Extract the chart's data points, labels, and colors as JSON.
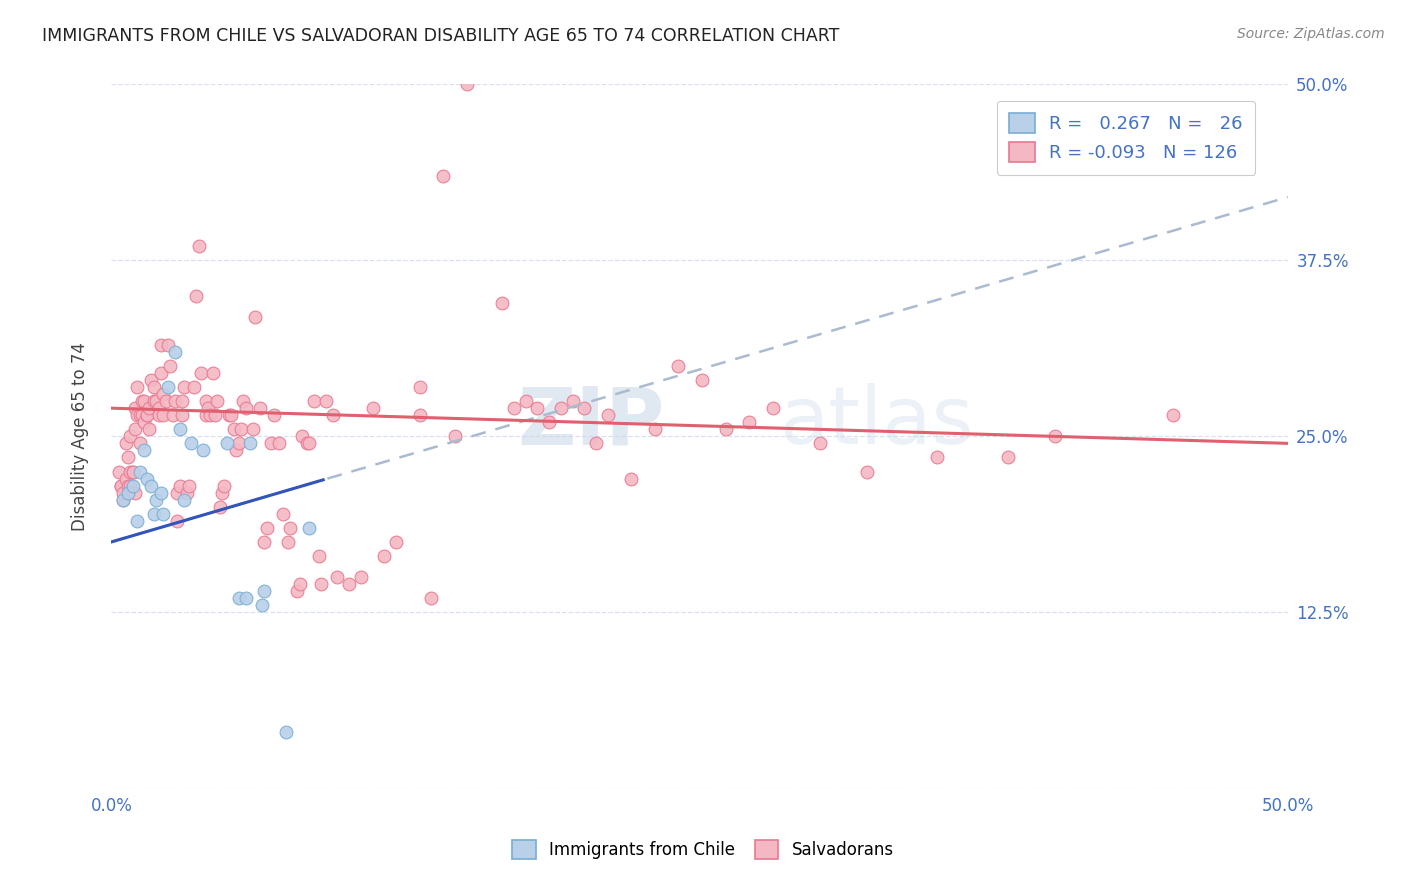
{
  "title": "IMMIGRANTS FROM CHILE VS SALVADORAN DISABILITY AGE 65 TO 74 CORRELATION CHART",
  "source": "Source: ZipAtlas.com",
  "ylabel": "Disability Age 65 to 74",
  "chile_color": "#b8d0e8",
  "chile_edge": "#7aadd4",
  "salvador_color": "#f4b8c4",
  "salvador_edge": "#e87890",
  "chile_line_color": "#3355bb",
  "salvador_line_color": "#e06070",
  "dashed_color": "#aabbd0",
  "watermark_color": "#c8d8e8",
  "legend_border": "#cccccc",
  "grid_color": "#d8dde8",
  "title_color": "#222222",
  "source_color": "#888888",
  "tick_color": "#4472c4",
  "ylabel_color": "#444444",
  "xlim": [
    0.0,
    0.5
  ],
  "ylim": [
    0.0,
    0.5
  ],
  "xtick_vals": [
    0.0,
    0.125,
    0.25,
    0.375,
    0.5
  ],
  "ytick_vals": [
    0.0,
    0.125,
    0.25,
    0.375,
    0.5
  ],
  "xtick_labels": [
    "0.0%",
    "",
    "",
    "",
    "50.0%"
  ],
  "ytick_labels_right": [
    "",
    "12.5%",
    "25.0%",
    "37.5%",
    "50.0%"
  ],
  "chile_points": [
    [
      0.005,
      0.205
    ],
    [
      0.007,
      0.21
    ],
    [
      0.009,
      0.215
    ],
    [
      0.011,
      0.19
    ],
    [
      0.012,
      0.225
    ],
    [
      0.014,
      0.24
    ],
    [
      0.015,
      0.22
    ],
    [
      0.017,
      0.215
    ],
    [
      0.018,
      0.195
    ],
    [
      0.019,
      0.205
    ],
    [
      0.021,
      0.21
    ],
    [
      0.022,
      0.195
    ],
    [
      0.024,
      0.285
    ],
    [
      0.027,
      0.31
    ],
    [
      0.029,
      0.255
    ],
    [
      0.031,
      0.205
    ],
    [
      0.034,
      0.245
    ],
    [
      0.039,
      0.24
    ],
    [
      0.049,
      0.245
    ],
    [
      0.054,
      0.135
    ],
    [
      0.057,
      0.135
    ],
    [
      0.059,
      0.245
    ],
    [
      0.064,
      0.13
    ],
    [
      0.065,
      0.14
    ],
    [
      0.074,
      0.04
    ],
    [
      0.084,
      0.185
    ]
  ],
  "salvador_points": [
    [
      0.003,
      0.225
    ],
    [
      0.004,
      0.215
    ],
    [
      0.004,
      0.215
    ],
    [
      0.005,
      0.205
    ],
    [
      0.005,
      0.21
    ],
    [
      0.006,
      0.22
    ],
    [
      0.006,
      0.245
    ],
    [
      0.007,
      0.215
    ],
    [
      0.007,
      0.235
    ],
    [
      0.008,
      0.225
    ],
    [
      0.008,
      0.25
    ],
    [
      0.008,
      0.215
    ],
    [
      0.009,
      0.225
    ],
    [
      0.009,
      0.225
    ],
    [
      0.01,
      0.255
    ],
    [
      0.01,
      0.21
    ],
    [
      0.01,
      0.27
    ],
    [
      0.011,
      0.285
    ],
    [
      0.011,
      0.265
    ],
    [
      0.012,
      0.265
    ],
    [
      0.012,
      0.245
    ],
    [
      0.013,
      0.275
    ],
    [
      0.013,
      0.265
    ],
    [
      0.014,
      0.26
    ],
    [
      0.014,
      0.275
    ],
    [
      0.015,
      0.265
    ],
    [
      0.015,
      0.265
    ],
    [
      0.016,
      0.27
    ],
    [
      0.016,
      0.255
    ],
    [
      0.017,
      0.29
    ],
    [
      0.018,
      0.285
    ],
    [
      0.018,
      0.275
    ],
    [
      0.019,
      0.275
    ],
    [
      0.02,
      0.27
    ],
    [
      0.02,
      0.265
    ],
    [
      0.021,
      0.295
    ],
    [
      0.021,
      0.315
    ],
    [
      0.022,
      0.265
    ],
    [
      0.022,
      0.28
    ],
    [
      0.023,
      0.275
    ],
    [
      0.024,
      0.315
    ],
    [
      0.025,
      0.3
    ],
    [
      0.026,
      0.265
    ],
    [
      0.027,
      0.275
    ],
    [
      0.028,
      0.19
    ],
    [
      0.028,
      0.21
    ],
    [
      0.029,
      0.215
    ],
    [
      0.03,
      0.265
    ],
    [
      0.03,
      0.275
    ],
    [
      0.031,
      0.285
    ],
    [
      0.032,
      0.21
    ],
    [
      0.033,
      0.215
    ],
    [
      0.035,
      0.285
    ],
    [
      0.036,
      0.35
    ],
    [
      0.037,
      0.385
    ],
    [
      0.038,
      0.295
    ],
    [
      0.04,
      0.265
    ],
    [
      0.04,
      0.275
    ],
    [
      0.041,
      0.27
    ],
    [
      0.042,
      0.265
    ],
    [
      0.043,
      0.295
    ],
    [
      0.044,
      0.265
    ],
    [
      0.045,
      0.275
    ],
    [
      0.046,
      0.2
    ],
    [
      0.047,
      0.21
    ],
    [
      0.048,
      0.215
    ],
    [
      0.05,
      0.265
    ],
    [
      0.051,
      0.265
    ],
    [
      0.052,
      0.255
    ],
    [
      0.053,
      0.24
    ],
    [
      0.054,
      0.245
    ],
    [
      0.055,
      0.255
    ],
    [
      0.056,
      0.275
    ],
    [
      0.057,
      0.27
    ],
    [
      0.06,
      0.255
    ],
    [
      0.061,
      0.335
    ],
    [
      0.063,
      0.27
    ],
    [
      0.065,
      0.175
    ],
    [
      0.066,
      0.185
    ],
    [
      0.068,
      0.245
    ],
    [
      0.069,
      0.265
    ],
    [
      0.071,
      0.245
    ],
    [
      0.073,
      0.195
    ],
    [
      0.075,
      0.175
    ],
    [
      0.076,
      0.185
    ],
    [
      0.079,
      0.14
    ],
    [
      0.08,
      0.145
    ],
    [
      0.081,
      0.25
    ],
    [
      0.083,
      0.245
    ],
    [
      0.084,
      0.245
    ],
    [
      0.086,
      0.275
    ],
    [
      0.088,
      0.165
    ],
    [
      0.089,
      0.145
    ],
    [
      0.091,
      0.275
    ],
    [
      0.094,
      0.265
    ],
    [
      0.096,
      0.15
    ],
    [
      0.101,
      0.145
    ],
    [
      0.106,
      0.15
    ],
    [
      0.111,
      0.27
    ],
    [
      0.116,
      0.165
    ],
    [
      0.121,
      0.175
    ],
    [
      0.131,
      0.285
    ],
    [
      0.131,
      0.265
    ],
    [
      0.136,
      0.135
    ],
    [
      0.141,
      0.435
    ],
    [
      0.146,
      0.25
    ],
    [
      0.151,
      0.5
    ],
    [
      0.166,
      0.345
    ],
    [
      0.171,
      0.27
    ],
    [
      0.176,
      0.275
    ],
    [
      0.181,
      0.27
    ],
    [
      0.186,
      0.26
    ],
    [
      0.191,
      0.27
    ],
    [
      0.196,
      0.275
    ],
    [
      0.201,
      0.27
    ],
    [
      0.206,
      0.245
    ],
    [
      0.211,
      0.265
    ],
    [
      0.221,
      0.22
    ],
    [
      0.231,
      0.255
    ],
    [
      0.241,
      0.3
    ],
    [
      0.251,
      0.29
    ],
    [
      0.261,
      0.255
    ],
    [
      0.271,
      0.26
    ],
    [
      0.281,
      0.27
    ],
    [
      0.301,
      0.245
    ],
    [
      0.321,
      0.225
    ],
    [
      0.351,
      0.235
    ],
    [
      0.381,
      0.235
    ],
    [
      0.401,
      0.25
    ],
    [
      0.451,
      0.265
    ]
  ]
}
